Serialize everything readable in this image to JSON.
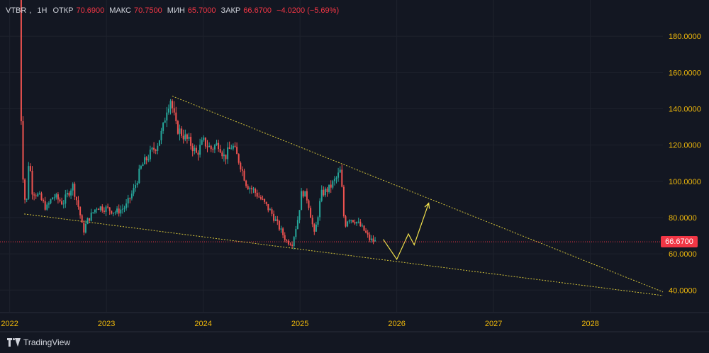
{
  "legend": {
    "symbol": "VTBR",
    "timeframe": "1H",
    "open_label": "ОТКР",
    "open_value": "70.6900",
    "high_label": "МАКС",
    "high_value": "70.7500",
    "low_label": "МИН",
    "low_value": "65.7000",
    "close_label": "ЗАКР",
    "close_value": "66.6700",
    "change": "−4.0200 (−5.69%)"
  },
  "last_price_label": "66.6700",
  "branding": {
    "name": "TradingView"
  },
  "colors": {
    "background": "#131722",
    "grid": "#1e222d",
    "up": "#26a69a",
    "down": "#ef5350",
    "axis_text": "#d1d4dc",
    "price_tick": "#f0b90b",
    "trendline": "#d4c43a",
    "projection": "#f2e14c",
    "last_price": "#f23645"
  },
  "chart_data": {
    "type": "candlestick",
    "symbol": "VTBR",
    "timeframe": "1H",
    "x_axis": {
      "unit": "year",
      "ticks": [
        "2022",
        "2023",
        "2024",
        "2025",
        "2026",
        "2027",
        "2028"
      ],
      "range": [
        2021.9,
        2028.75
      ]
    },
    "y_axis": {
      "position": "right",
      "ticks": [
        "40.0000",
        "60.0000",
        "80.0000",
        "100.0000",
        "120.0000",
        "140.0000",
        "160.0000",
        "180.0000"
      ],
      "range": [
        28,
        200
      ]
    },
    "grid": true,
    "last_price": 66.67,
    "price_path": [
      [
        2022.1,
        205
      ],
      [
        2022.11,
        150
      ],
      [
        2022.14,
        100
      ],
      [
        2022.17,
        83
      ],
      [
        2022.2,
        115
      ],
      [
        2022.23,
        95
      ],
      [
        2022.3,
        92
      ],
      [
        2022.38,
        85
      ],
      [
        2022.45,
        92
      ],
      [
        2022.55,
        88
      ],
      [
        2022.65,
        98
      ],
      [
        2022.72,
        84
      ],
      [
        2022.76,
        72
      ],
      [
        2022.8,
        78
      ],
      [
        2022.9,
        86
      ],
      [
        2023.0,
        85
      ],
      [
        2023.1,
        83
      ],
      [
        2023.2,
        86
      ],
      [
        2023.28,
        95
      ],
      [
        2023.36,
        108
      ],
      [
        2023.45,
        115
      ],
      [
        2023.52,
        120
      ],
      [
        2023.58,
        128
      ],
      [
        2023.62,
        140
      ],
      [
        2023.66,
        146
      ],
      [
        2023.72,
        130
      ],
      [
        2023.8,
        125
      ],
      [
        2023.88,
        120
      ],
      [
        2023.93,
        115
      ],
      [
        2024.0,
        122
      ],
      [
        2024.08,
        118
      ],
      [
        2024.16,
        121
      ],
      [
        2024.22,
        113
      ],
      [
        2024.3,
        120
      ],
      [
        2024.38,
        110
      ],
      [
        2024.45,
        98
      ],
      [
        2024.52,
        95
      ],
      [
        2024.6,
        90
      ],
      [
        2024.7,
        83
      ],
      [
        2024.78,
        75
      ],
      [
        2024.86,
        67
      ],
      [
        2024.92,
        66
      ],
      [
        2024.98,
        80
      ],
      [
        2025.02,
        95
      ],
      [
        2025.08,
        90
      ],
      [
        2025.15,
        70
      ],
      [
        2025.22,
        93
      ],
      [
        2025.3,
        96
      ],
      [
        2025.38,
        102
      ],
      [
        2025.42,
        106
      ],
      [
        2025.46,
        75
      ],
      [
        2025.5,
        80
      ],
      [
        2025.58,
        78
      ],
      [
        2025.66,
        73
      ],
      [
        2025.72,
        68
      ],
      [
        2025.78,
        66.67
      ]
    ],
    "annotations": {
      "upper_trendline": [
        [
          2023.68,
          147
        ],
        [
          2028.75,
          39
        ]
      ],
      "lower_trendline": [
        [
          2022.15,
          82
        ],
        [
          2028.75,
          37
        ]
      ],
      "projection_path": [
        [
          2025.86,
          68
        ],
        [
          2026.0,
          57
        ],
        [
          2026.12,
          71
        ],
        [
          2026.18,
          65
        ],
        [
          2026.33,
          88
        ]
      ]
    }
  }
}
